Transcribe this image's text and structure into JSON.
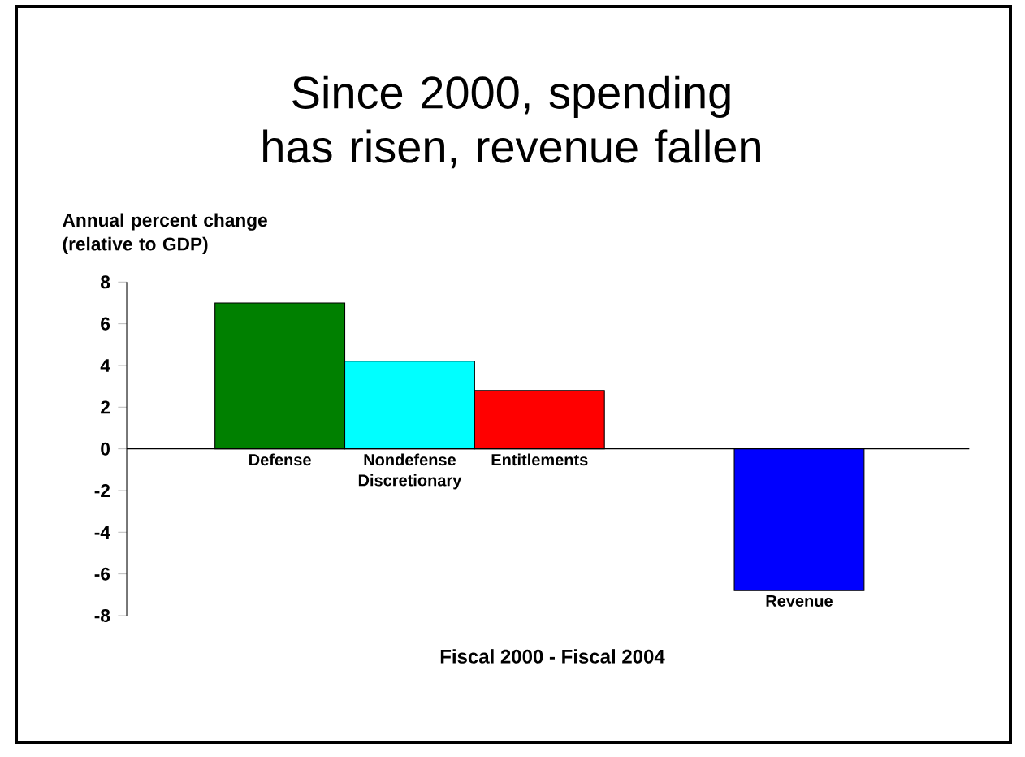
{
  "chart_data": {
    "type": "bar",
    "title": "Since 2000, spending has risen, revenue fallen",
    "ylabel": "Annual percent change (relative to GDP)",
    "xlabel": "Fiscal 2000 - Fiscal 2004",
    "categories": [
      "Defense",
      "Nondefense Discretionary",
      "Entitlements",
      null,
      "Revenue"
    ],
    "values": [
      7.0,
      4.2,
      2.8,
      null,
      -6.8
    ],
    "colors": [
      "#008000",
      "#00ffff",
      "#ff0000",
      "#000000",
      "#0000ff"
    ],
    "ylim": [
      -8,
      8
    ],
    "yticks": [
      -8,
      -6,
      -4,
      -2,
      0,
      2,
      4,
      6,
      8
    ]
  }
}
